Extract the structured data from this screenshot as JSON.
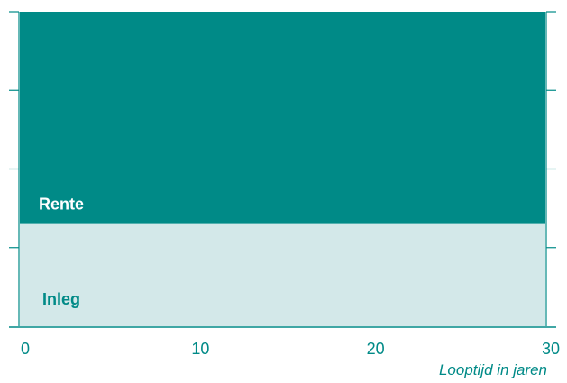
{
  "chart_data": {
    "type": "area",
    "stacked": true,
    "x": [
      0,
      30
    ],
    "xlim": [
      0,
      30
    ],
    "ylim": [
      0,
      4
    ],
    "xticks": [
      "0",
      "10",
      "20",
      "30"
    ],
    "xtick_values": [
      0,
      10,
      20,
      30
    ],
    "ytick_values": [
      0,
      1,
      2,
      3,
      4
    ],
    "xlabel": "Looptijd in jaren",
    "ylabel": "",
    "grid": false,
    "series": [
      {
        "name": "Inleg",
        "values": [
          1.3,
          1.3
        ],
        "color": "#d3e8e9",
        "label_color": "#008a87"
      },
      {
        "name": "Rente",
        "values": [
          2.7,
          2.7
        ],
        "color": "#008a87",
        "label_color": "#ffffff"
      }
    ],
    "axis_color": "#008a87",
    "tick_label_color": "#008a87"
  }
}
